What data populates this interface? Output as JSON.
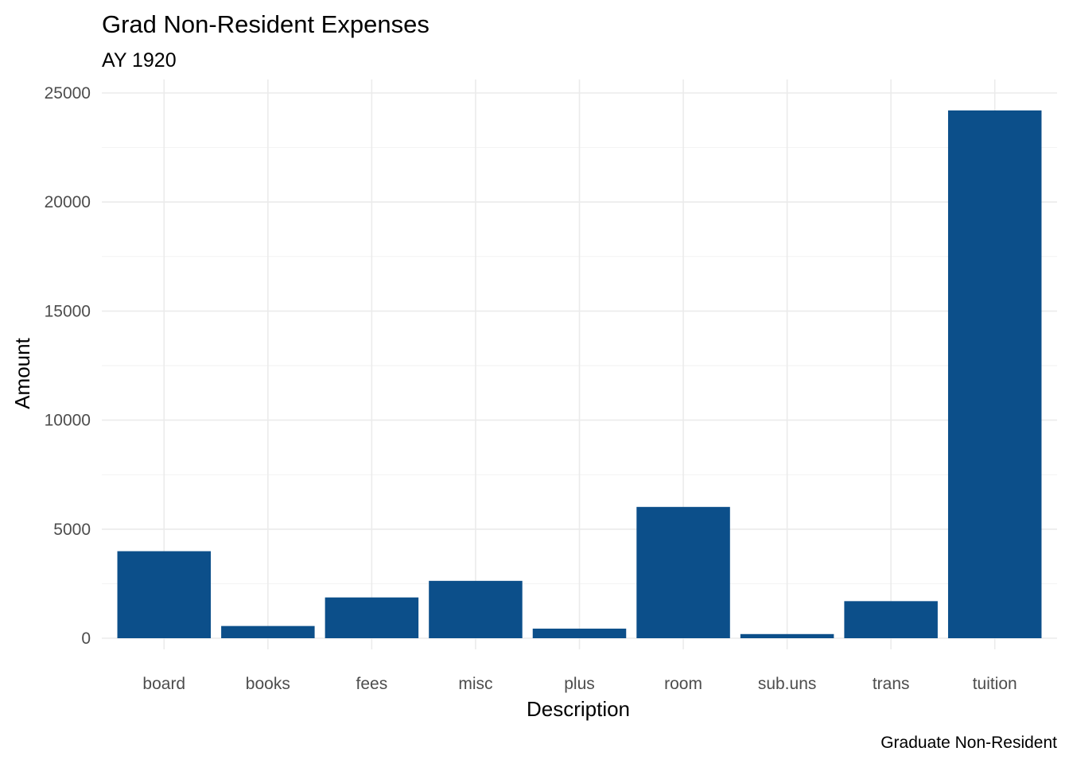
{
  "chart_data": {
    "type": "bar",
    "title": "Grad Non-Resident Expenses",
    "subtitle": "AY 1920",
    "xlabel": "Description",
    "ylabel": "Amount",
    "caption": "Graduate Non-Resident",
    "categories": [
      "board",
      "books",
      "fees",
      "misc",
      "plus",
      "room",
      "sub.uns",
      "trans",
      "tuition"
    ],
    "values": [
      3990,
      560,
      1870,
      2630,
      440,
      6020,
      190,
      1700,
      24200
    ],
    "ylim": [
      0,
      25000
    ],
    "yticks": [
      "0",
      "5000",
      "10000",
      "15000",
      "20000",
      "25000"
    ],
    "grid": true,
    "legend": "none",
    "bar_color": "#0C4F8A"
  }
}
